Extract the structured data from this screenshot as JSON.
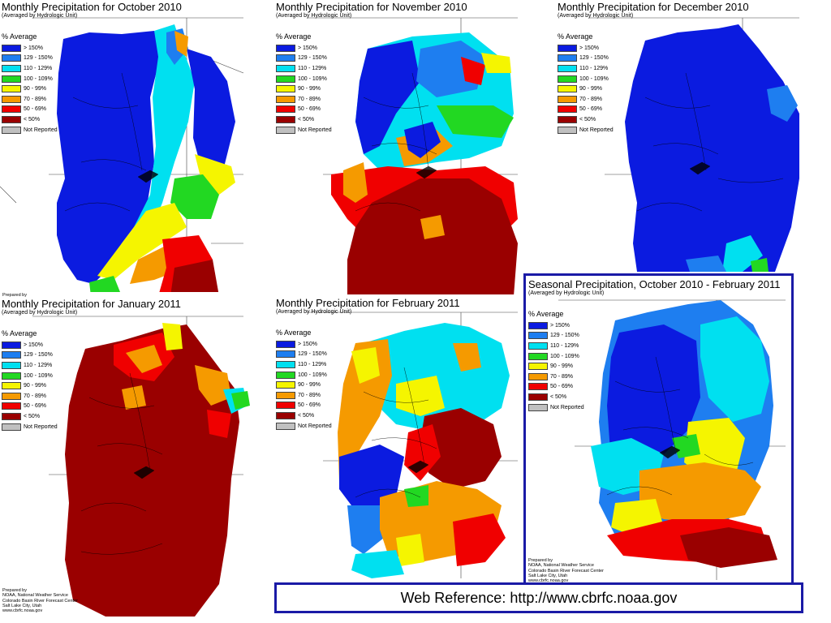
{
  "palette": {
    "gt150": "#0b1be0",
    "p129_150": "#1e7ef0",
    "p110_129": "#00e0f0",
    "p100_109": "#22d822",
    "p90_99": "#f5f500",
    "p70_89": "#f59a00",
    "p50_69": "#f00000",
    "lt50": "#9a0000",
    "not_reported": "#c0c0c0"
  },
  "legend": {
    "heading": "% Average",
    "items": [
      {
        "label": "> 150%",
        "color": "#0b1be0"
      },
      {
        "label": "129 - 150%",
        "color": "#1e7ef0"
      },
      {
        "label": "110 - 129%",
        "color": "#00e0f0"
      },
      {
        "label": "100 - 109%",
        "color": "#22d822"
      },
      {
        "label": "90 - 99%",
        "color": "#f5f500"
      },
      {
        "label": "70 - 89%",
        "color": "#f59a00"
      },
      {
        "label": "50 - 69%",
        "color": "#f00000"
      },
      {
        "label": "< 50%",
        "color": "#9a0000"
      },
      {
        "label": "Not Reported",
        "color": "#c0c0c0"
      }
    ]
  },
  "subtitle": "(Averaged by Hydrologic Unit)",
  "credit_lines": [
    "Prepared by",
    "NOAA, National Weather Service",
    "Colorado Basin River Forecast Center",
    "Salt Lake City, Utah",
    "www.cbrfc.noaa.gov"
  ],
  "panels": {
    "oct": {
      "title": "Monthly Precipitation for October 2010"
    },
    "nov": {
      "title": "Monthly Precipitation for November 2010"
    },
    "dec": {
      "title": "Monthly Precipitation for December 2010"
    },
    "jan": {
      "title": "Monthly Precipitation for January 2011"
    },
    "feb": {
      "title": "Monthly Precipitation for February 2011"
    },
    "seasonal": {
      "title": "Seasonal Precipitation, October 2010 - February 2011"
    }
  },
  "web_reference": "Web Reference: http://www.cbrfc.noaa.gov"
}
